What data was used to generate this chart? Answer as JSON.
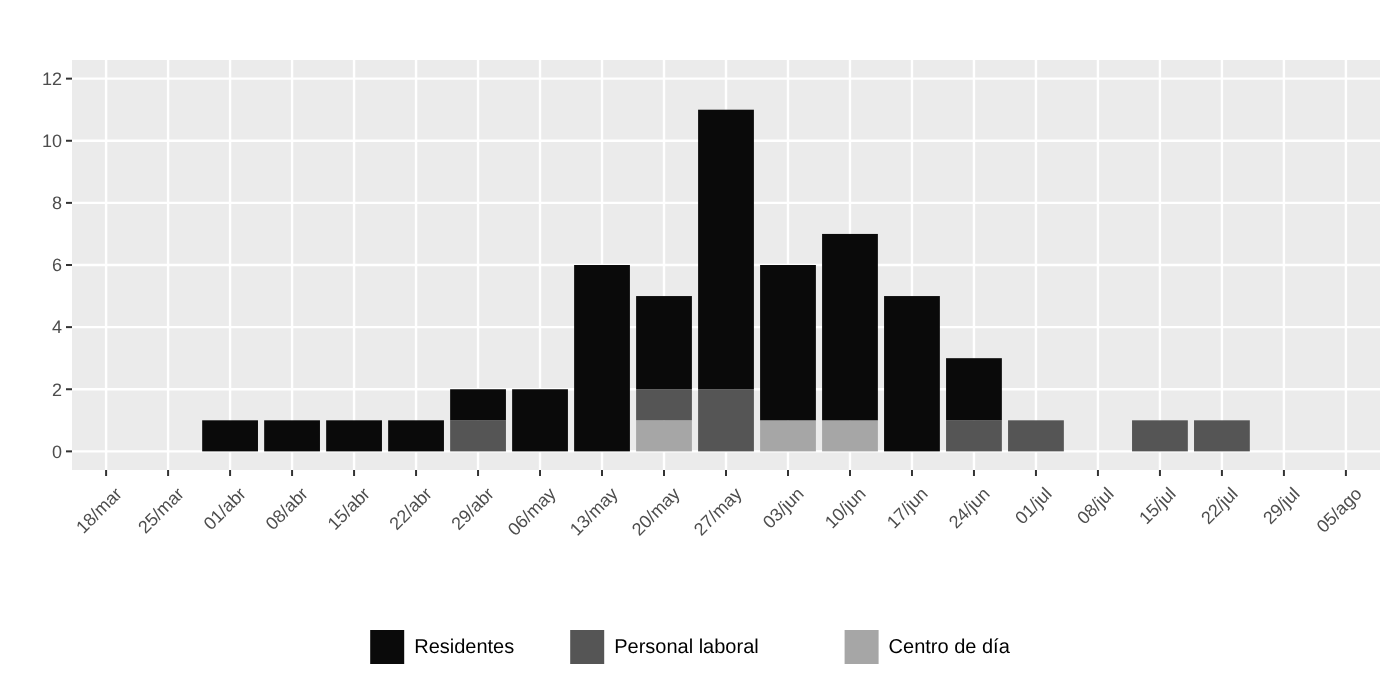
{
  "chart_data": {
    "type": "bar",
    "stacked": true,
    "grid": true,
    "legend": "bottom",
    "categories": [
      "18/mar",
      "25/mar",
      "01/abr",
      "08/abr",
      "15/abr",
      "22/abr",
      "29/abr",
      "06/may",
      "13/may",
      "20/may",
      "27/may",
      "03/jun",
      "10/jun",
      "17/jun",
      "24/jun",
      "01/jul",
      "08/jul",
      "15/jul",
      "22/jul",
      "29/jul",
      "05/ago"
    ],
    "ylim": [
      -0.6,
      12.6
    ],
    "yticks": [
      0,
      2,
      4,
      6,
      8,
      10,
      12
    ],
    "series": [
      {
        "name": "Centro de día",
        "color": "#a6a6a6",
        "values": [
          0,
          0,
          0,
          0,
          0,
          0,
          0,
          0,
          0,
          1,
          0,
          1,
          1,
          0,
          0,
          0,
          0,
          0,
          0,
          0,
          0
        ]
      },
      {
        "name": "Personal laboral",
        "color": "#555555",
        "values": [
          0,
          0,
          0,
          0,
          0,
          0,
          1,
          0,
          0,
          1,
          2,
          0,
          0,
          0,
          1,
          1,
          0,
          1,
          1,
          0,
          0
        ]
      },
      {
        "name": "Residentes",
        "color": "#0a0a0a",
        "values": [
          0,
          0,
          1,
          1,
          1,
          1,
          1,
          2,
          6,
          3,
          9,
          5,
          6,
          5,
          2,
          0,
          0,
          0,
          0,
          0,
          0
        ]
      }
    ]
  }
}
